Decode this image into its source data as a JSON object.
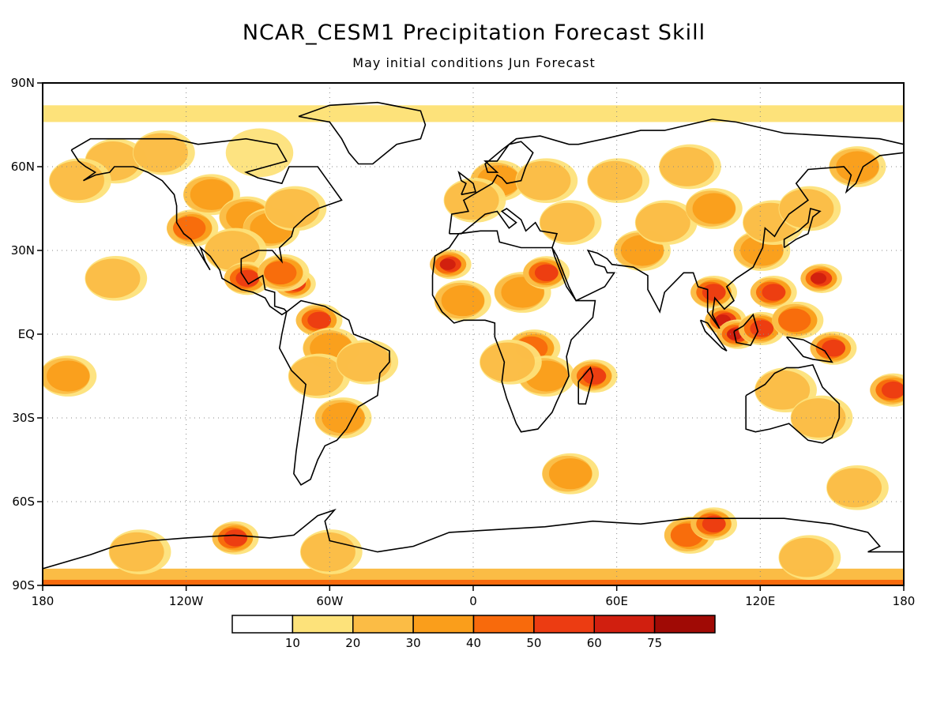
{
  "header": {
    "title": "NCAR_CESM1 Precipitation Forecast Skill",
    "subtitle": "May initial conditions  Jun Forecast"
  },
  "axes": {
    "y_ticks": [
      {
        "lat": 90,
        "label": "90N"
      },
      {
        "lat": 60,
        "label": "60N"
      },
      {
        "lat": 30,
        "label": "30N"
      },
      {
        "lat": 0,
        "label": "EQ"
      },
      {
        "lat": -30,
        "label": "30S"
      },
      {
        "lat": -60,
        "label": "60S"
      },
      {
        "lat": -90,
        "label": "90S"
      }
    ],
    "x_ticks": [
      {
        "lon": -180,
        "label": "180"
      },
      {
        "lon": -120,
        "label": "120W"
      },
      {
        "lon": -60,
        "label": "60W"
      },
      {
        "lon": 0,
        "label": "0"
      },
      {
        "lon": 60,
        "label": "60E"
      },
      {
        "lon": 120,
        "label": "120E"
      },
      {
        "lon": 180,
        "label": "180"
      }
    ]
  },
  "colorbar": {
    "colors": [
      "#ffffff",
      "#fde27a",
      "#fbbc45",
      "#fa9e1b",
      "#f86a0c",
      "#ec3c12",
      "#d11f0f",
      "#a00a05"
    ],
    "labels": [
      "10",
      "20",
      "30",
      "40",
      "50",
      "60",
      "75"
    ]
  },
  "map": {
    "extent": {
      "lon": [
        -180,
        180
      ],
      "lat": [
        -90,
        90
      ]
    },
    "grid": true,
    "skill_patches": [
      {
        "lon": -118,
        "lat": 38,
        "level": 4
      },
      {
        "lon": -110,
        "lat": 50,
        "level": 3
      },
      {
        "lon": -95,
        "lat": 42,
        "level": 3
      },
      {
        "lon": -85,
        "lat": 38,
        "level": 3
      },
      {
        "lon": -100,
        "lat": 30,
        "level": 2
      },
      {
        "lon": -75,
        "lat": 45,
        "level": 2
      },
      {
        "lon": -150,
        "lat": 62,
        "level": 2
      },
      {
        "lon": -165,
        "lat": 55,
        "level": 2
      },
      {
        "lon": -130,
        "lat": 65,
        "level": 2
      },
      {
        "lon": -90,
        "lat": 65,
        "level": 1
      },
      {
        "lon": -95,
        "lat": 20,
        "level": 5
      },
      {
        "lon": -75,
        "lat": 18,
        "level": 6
      },
      {
        "lon": -80,
        "lat": 22,
        "level": 4
      },
      {
        "lon": -65,
        "lat": 5,
        "level": 5
      },
      {
        "lon": -60,
        "lat": -5,
        "level": 3
      },
      {
        "lon": -65,
        "lat": -15,
        "level": 2
      },
      {
        "lon": -55,
        "lat": -30,
        "level": 3
      },
      {
        "lon": -45,
        "lat": -10,
        "level": 2
      },
      {
        "lon": -10,
        "lat": 25,
        "level": 6
      },
      {
        "lon": -5,
        "lat": 12,
        "level": 3
      },
      {
        "lon": 20,
        "lat": 15,
        "level": 3
      },
      {
        "lon": 30,
        "lat": 22,
        "level": 5
      },
      {
        "lon": 25,
        "lat": -5,
        "level": 4
      },
      {
        "lon": 30,
        "lat": -15,
        "level": 3
      },
      {
        "lon": 15,
        "lat": -10,
        "level": 2
      },
      {
        "lon": 50,
        "lat": -15,
        "level": 5
      },
      {
        "lon": 10,
        "lat": 55,
        "level": 3
      },
      {
        "lon": 30,
        "lat": 55,
        "level": 2
      },
      {
        "lon": 0,
        "lat": 48,
        "level": 2
      },
      {
        "lon": 40,
        "lat": 40,
        "level": 2
      },
      {
        "lon": 60,
        "lat": 55,
        "level": 2
      },
      {
        "lon": 70,
        "lat": 30,
        "level": 3
      },
      {
        "lon": 80,
        "lat": 40,
        "level": 2
      },
      {
        "lon": 90,
        "lat": 60,
        "level": 2
      },
      {
        "lon": 100,
        "lat": 45,
        "level": 3
      },
      {
        "lon": 120,
        "lat": 30,
        "level": 3
      },
      {
        "lon": 125,
        "lat": 40,
        "level": 2
      },
      {
        "lon": 140,
        "lat": 45,
        "level": 2
      },
      {
        "lon": 160,
        "lat": 60,
        "level": 3
      },
      {
        "lon": 100,
        "lat": 15,
        "level": 5
      },
      {
        "lon": 105,
        "lat": 5,
        "level": 6
      },
      {
        "lon": 110,
        "lat": 0,
        "level": 6
      },
      {
        "lon": 120,
        "lat": 2,
        "level": 5
      },
      {
        "lon": 125,
        "lat": 15,
        "level": 5
      },
      {
        "lon": 145,
        "lat": 20,
        "level": 6
      },
      {
        "lon": 150,
        "lat": -5,
        "level": 5
      },
      {
        "lon": 135,
        "lat": 5,
        "level": 4
      },
      {
        "lon": 130,
        "lat": -20,
        "level": 2
      },
      {
        "lon": 145,
        "lat": -30,
        "level": 2
      },
      {
        "lon": 175,
        "lat": -20,
        "level": 5
      },
      {
        "lon": -170,
        "lat": -15,
        "level": 3
      },
      {
        "lon": -150,
        "lat": 20,
        "level": 2
      },
      {
        "lon": 40,
        "lat": -50,
        "level": 3
      },
      {
        "lon": 160,
        "lat": -55,
        "level": 2
      },
      {
        "lon": -100,
        "lat": -73,
        "level": 5
      },
      {
        "lon": -60,
        "lat": -78,
        "level": 2
      },
      {
        "lon": 90,
        "lat": -72,
        "level": 4
      },
      {
        "lon": 100,
        "lat": -68,
        "level": 5
      },
      {
        "lon": 140,
        "lat": -80,
        "level": 2
      },
      {
        "lon": -140,
        "lat": -78,
        "level": 2
      }
    ],
    "polar_bands": [
      {
        "lat_from": -84,
        "lat_to": -90,
        "level": 2
      },
      {
        "lat_from": -88,
        "lat_to": -90,
        "level": 4
      },
      {
        "lat_from": 82,
        "lat_to": 76,
        "level": 1
      }
    ]
  }
}
